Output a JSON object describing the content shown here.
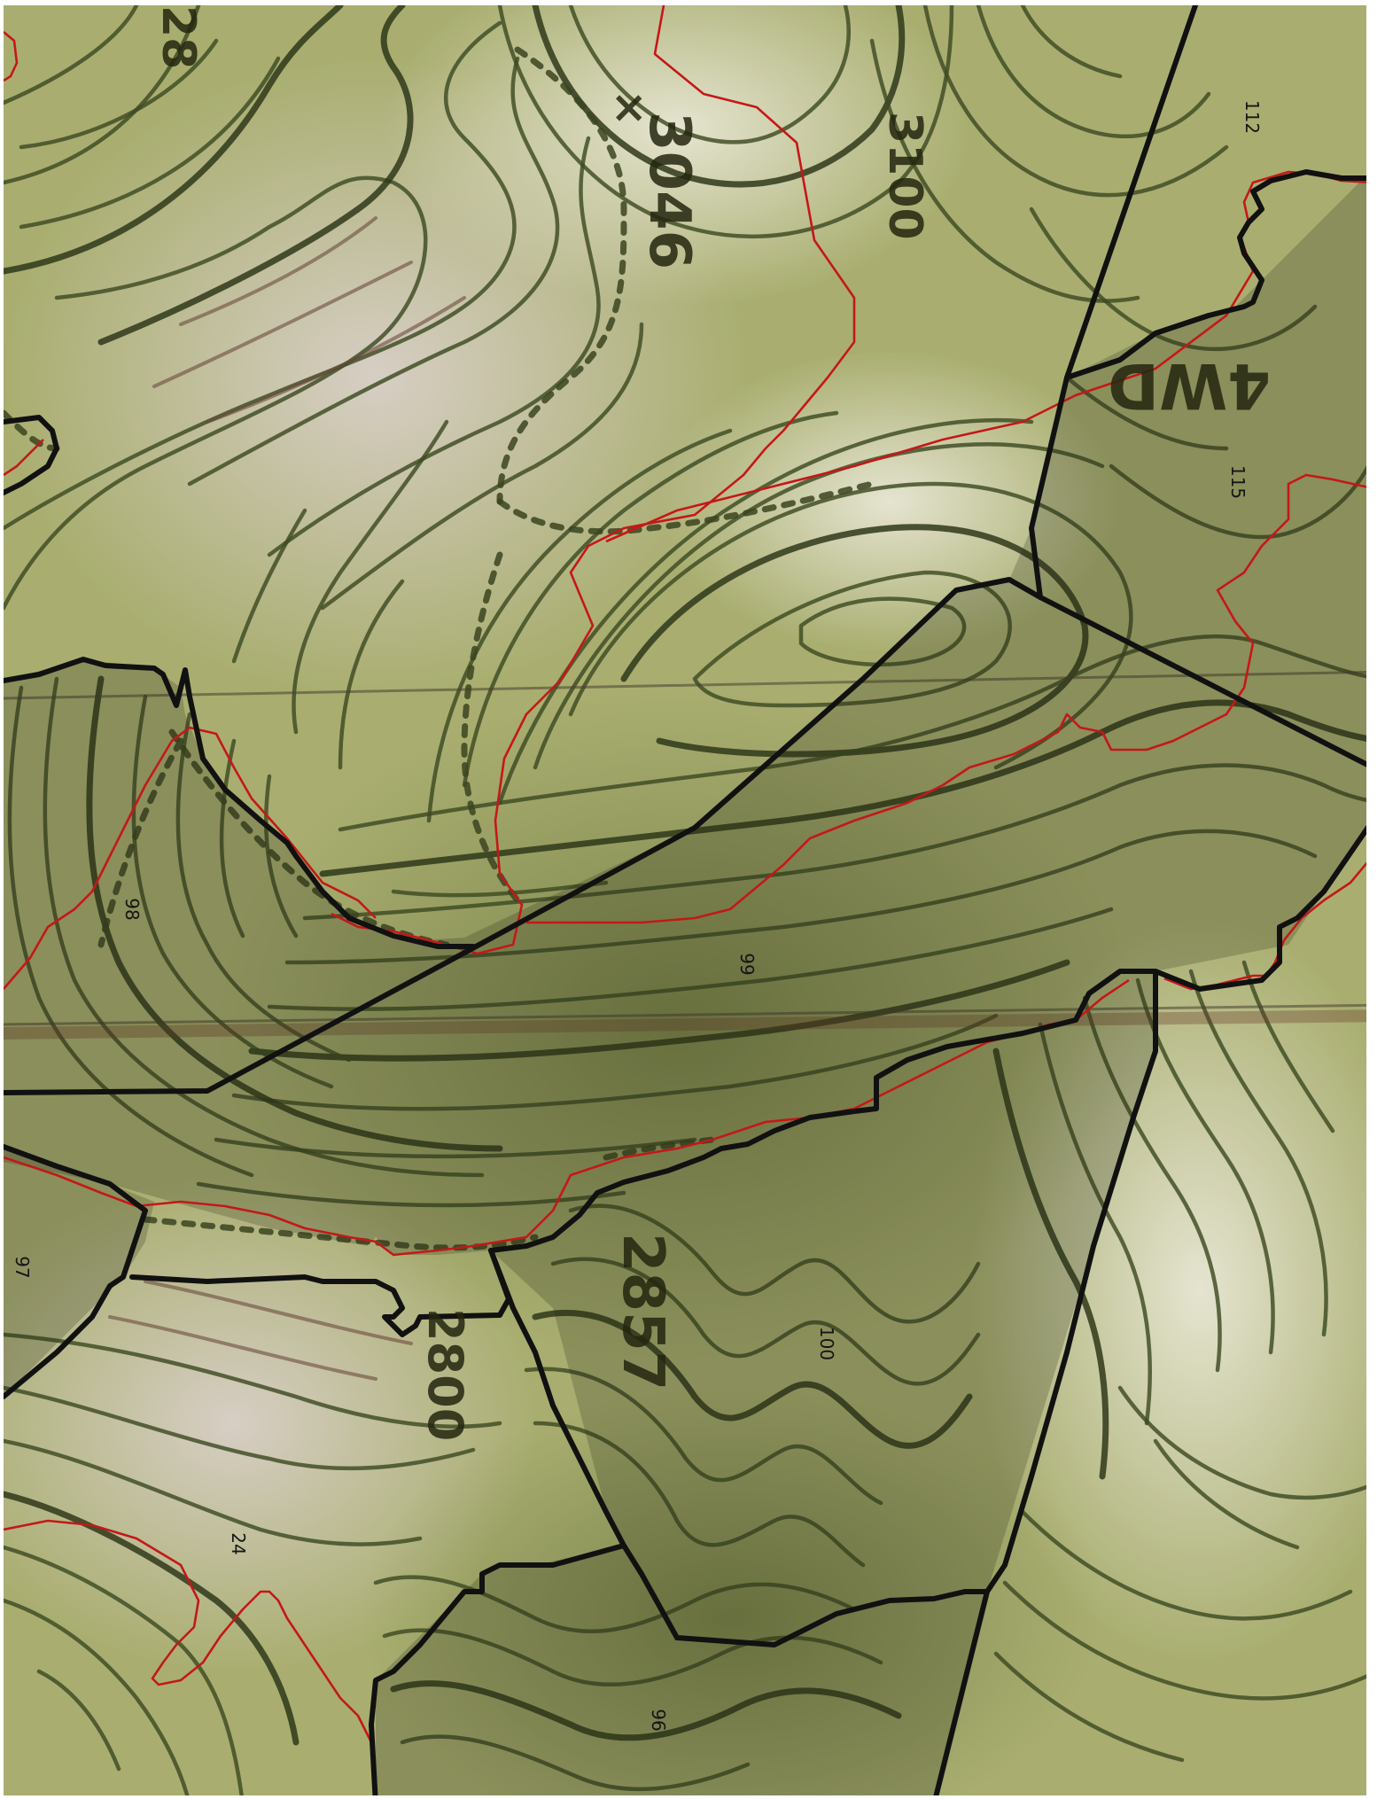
{
  "map": {
    "type": "topographic-parcel-map",
    "orientation": "rotated 90 degrees clockwise",
    "colors": {
      "terrain_light": "#d9dcb8",
      "terrain_mid": "#a8ad6e",
      "terrain_dark": "#6f7a3f",
      "contour": "#3d4a22",
      "boundary_red": "#c41818",
      "parcel_outline": "#111111"
    },
    "parcel_labels": {
      "p112": "112",
      "p115": "115",
      "p98": "98",
      "p99": "99",
      "p97": "97",
      "p100": "100",
      "p24": "24",
      "p96": "96"
    },
    "map_text": {
      "elevation_top": "3046",
      "elevation_middle": "2857",
      "elevation_bottom": "2800",
      "faded_top_left": "28",
      "faded_top_right": "3100",
      "road_label": "4WD"
    }
  }
}
